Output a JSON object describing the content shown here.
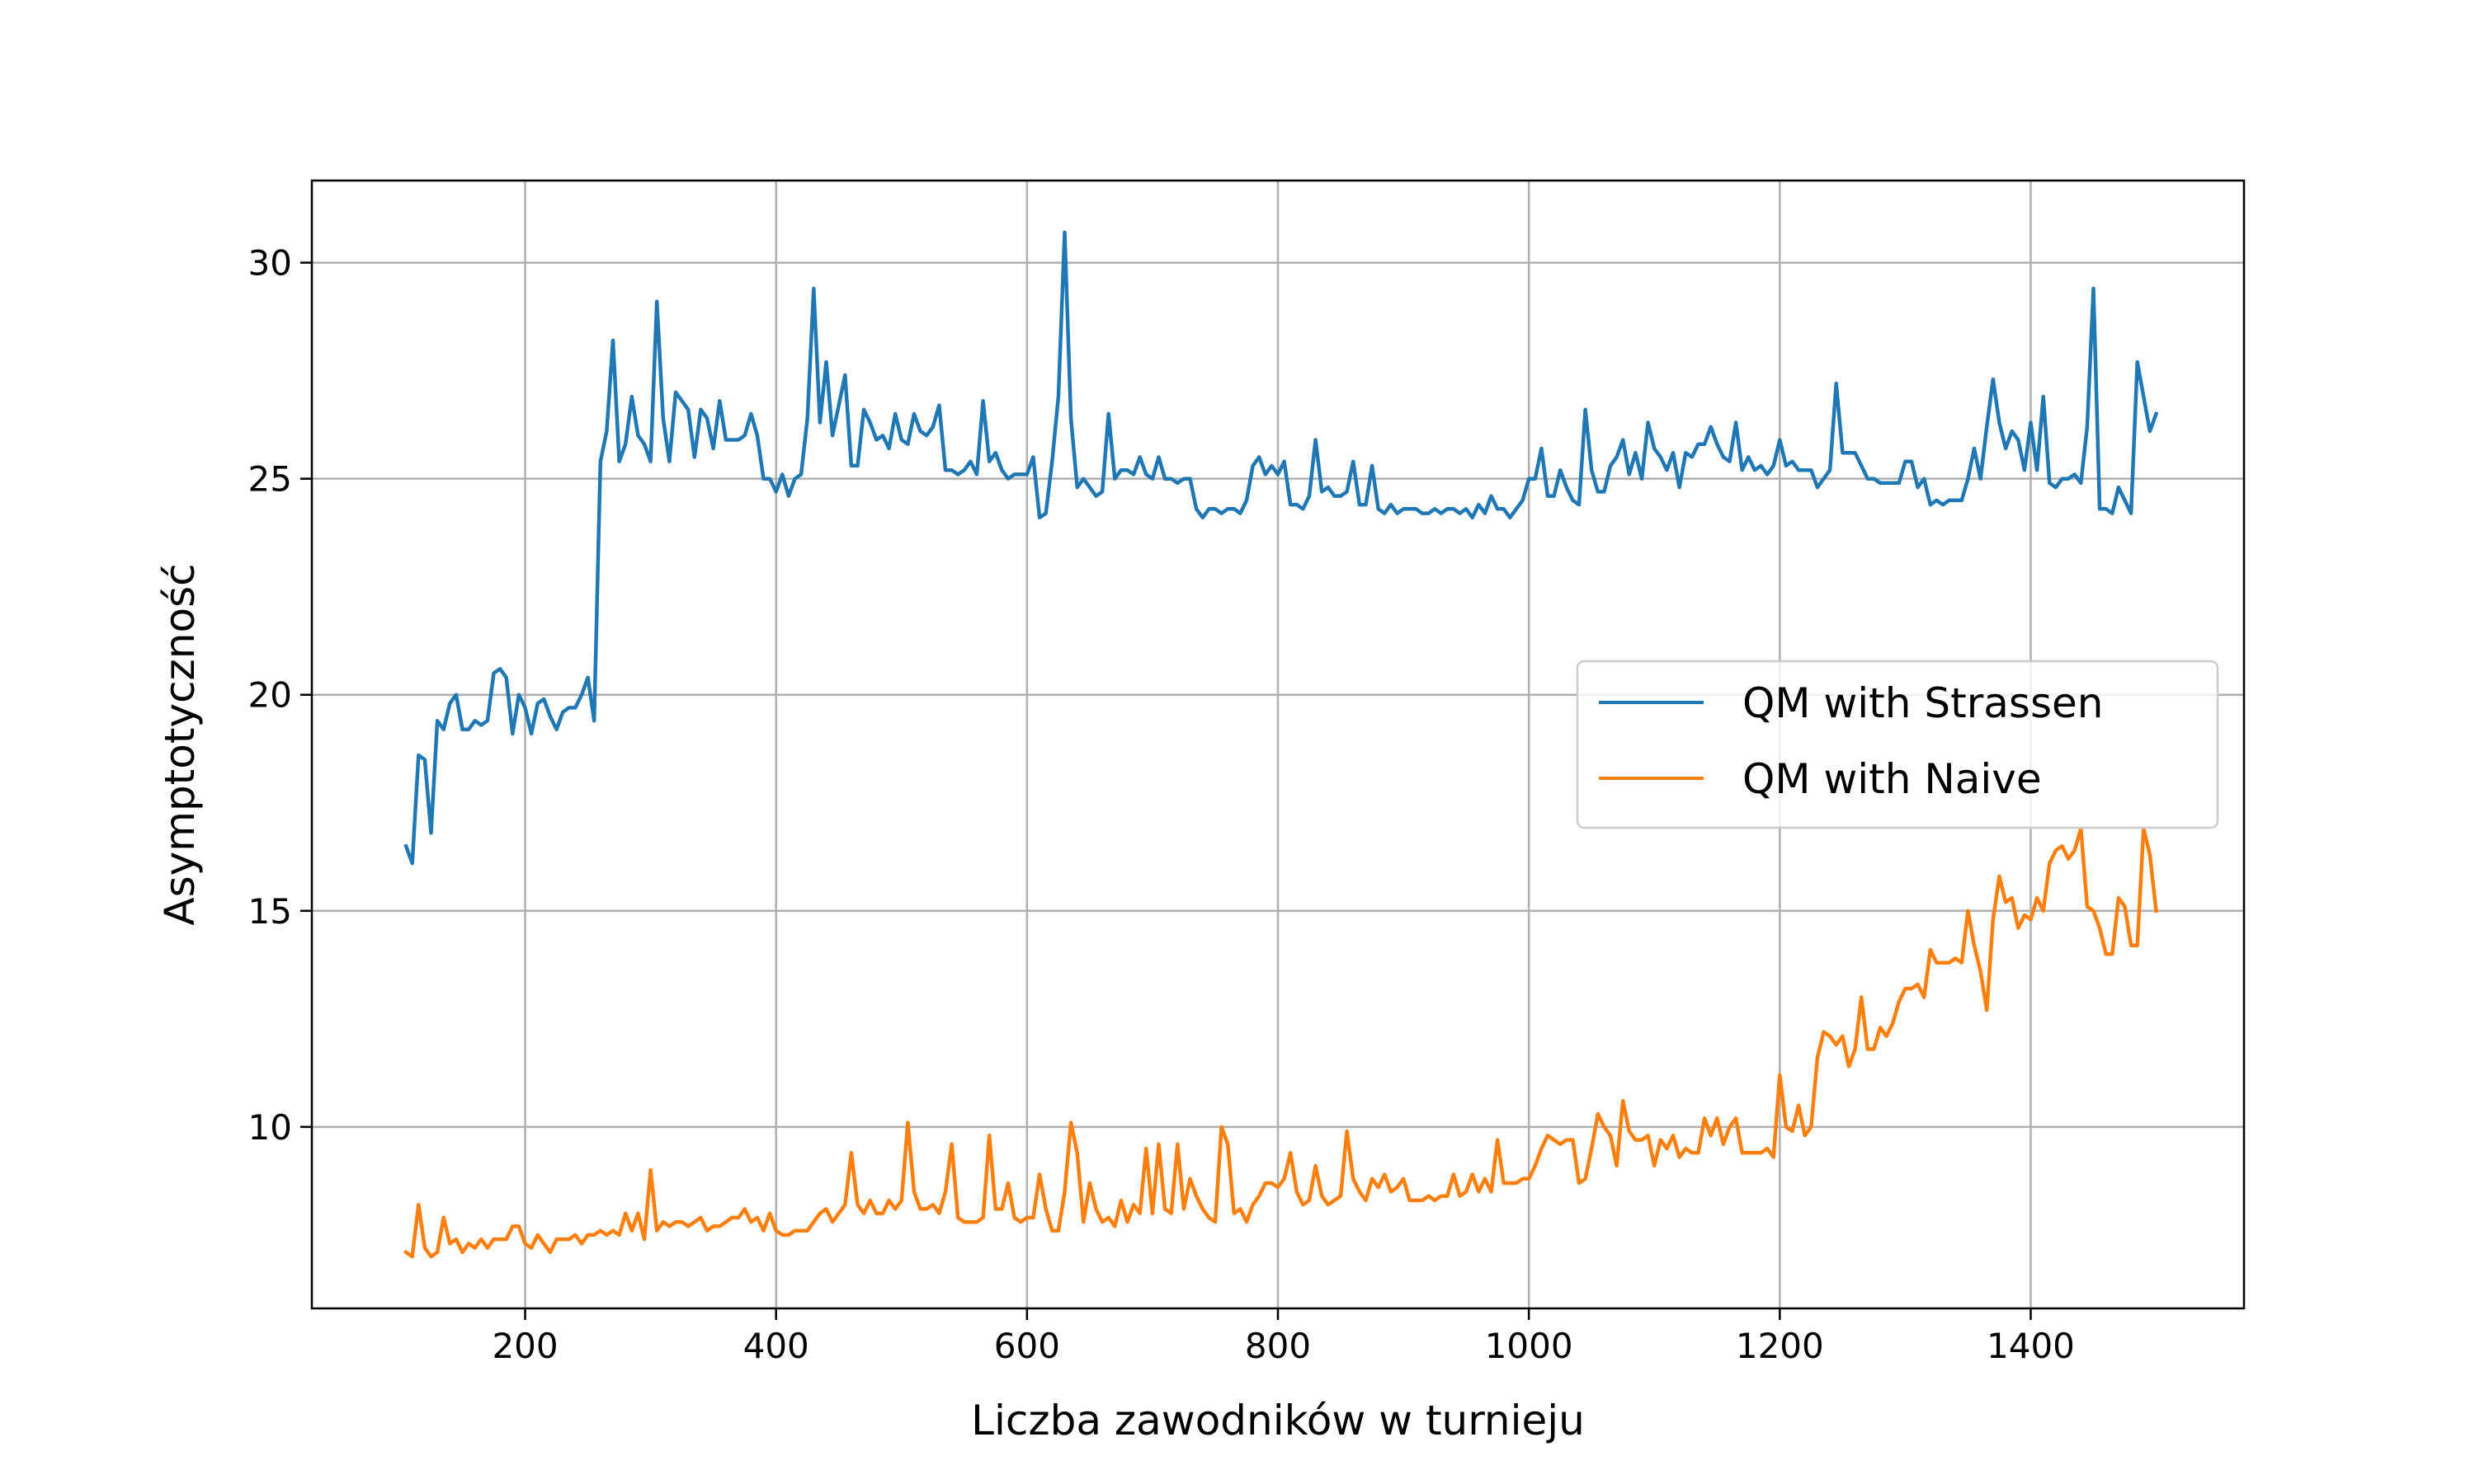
{
  "chart_data": {
    "type": "line",
    "title": "",
    "xlabel": "Liczba zawodników w turnieju",
    "ylabel": "Asymptotyczność",
    "xlim": [
      30,
      1570
    ],
    "ylim": [
      5.8,
      31.9
    ],
    "xticks": [
      200,
      400,
      600,
      800,
      1000,
      1200,
      1400
    ],
    "yticks": [
      10,
      15,
      20,
      25,
      30
    ],
    "grid": true,
    "legend_position": "center-right",
    "series": [
      {
        "name": "QM with Strassen",
        "color": "#1f77b4",
        "x": [
          105,
          110,
          115,
          120,
          125,
          130,
          135,
          140,
          145,
          150,
          155,
          160,
          165,
          170,
          175,
          180,
          185,
          190,
          195,
          200,
          205,
          210,
          215,
          220,
          225,
          230,
          235,
          240,
          245,
          250,
          255,
          260,
          265,
          270,
          275,
          280,
          285,
          290,
          295,
          300,
          305,
          310,
          315,
          320,
          325,
          330,
          335,
          340,
          345,
          350,
          355,
          360,
          365,
          370,
          375,
          380,
          385,
          390,
          395,
          400,
          405,
          410,
          415,
          420,
          425,
          430,
          435,
          440,
          445,
          450,
          455,
          460,
          465,
          470,
          475,
          480,
          485,
          490,
          495,
          500,
          505,
          510,
          515,
          520,
          525,
          530,
          535,
          540,
          545,
          550,
          555,
          560,
          565,
          570,
          575,
          580,
          585,
          590,
          595,
          600,
          605,
          610,
          615,
          620,
          625,
          630,
          635,
          640,
          645,
          650,
          655,
          660,
          665,
          670,
          675,
          680,
          685,
          690,
          695,
          700,
          705,
          710,
          715,
          720,
          725,
          730,
          735,
          740,
          745,
          750,
          755,
          760,
          765,
          770,
          775,
          780,
          785,
          790,
          795,
          800,
          805,
          810,
          815,
          820,
          825,
          830,
          835,
          840,
          845,
          850,
          855,
          860,
          865,
          870,
          875,
          880,
          885,
          890,
          895,
          900,
          905,
          910,
          915,
          920,
          925,
          930,
          935,
          940,
          945,
          950,
          955,
          960,
          965,
          970,
          975,
          980,
          985,
          990,
          995,
          1000,
          1005,
          1010,
          1015,
          1020,
          1025,
          1030,
          1035,
          1040,
          1045,
          1050,
          1055,
          1060,
          1065,
          1070,
          1075,
          1080,
          1085,
          1090,
          1095,
          1100,
          1105,
          1110,
          1115,
          1120,
          1125,
          1130,
          1135,
          1140,
          1145,
          1150,
          1155,
          1160,
          1165,
          1170,
          1175,
          1180,
          1185,
          1190,
          1195,
          1200,
          1205,
          1210,
          1215,
          1220,
          1225,
          1230,
          1235,
          1240,
          1245,
          1250,
          1255,
          1260,
          1265,
          1270,
          1275,
          1280,
          1285,
          1290,
          1295,
          1300,
          1305,
          1310,
          1315,
          1320,
          1325,
          1330,
          1335,
          1340,
          1345,
          1350,
          1355,
          1360,
          1365,
          1370,
          1375,
          1380,
          1385,
          1390,
          1395,
          1400,
          1405,
          1410,
          1415,
          1420,
          1425,
          1430,
          1435,
          1440,
          1445,
          1450,
          1455,
          1460,
          1465,
          1470,
          1475,
          1480,
          1485,
          1490,
          1495,
          1500
        ],
        "values": [
          16.5,
          16.1,
          18.6,
          18.5,
          16.8,
          19.4,
          19.2,
          19.8,
          20.0,
          19.2,
          19.2,
          19.4,
          19.3,
          19.4,
          20.5,
          20.6,
          20.4,
          19.1,
          20.0,
          19.7,
          19.1,
          19.8,
          19.9,
          19.5,
          19.2,
          19.6,
          19.7,
          19.7,
          20.0,
          20.4,
          19.4,
          25.4,
          26.1,
          28.2,
          25.4,
          25.8,
          26.9,
          26.0,
          25.8,
          25.4,
          29.1,
          26.4,
          25.4,
          27.0,
          26.8,
          26.6,
          25.5,
          26.6,
          26.4,
          25.7,
          26.8,
          25.9,
          25.9,
          25.9,
          26.0,
          26.5,
          26.0,
          25.0,
          25.0,
          24.7,
          25.1,
          24.6,
          25.0,
          25.1,
          26.4,
          29.4,
          26.3,
          27.7,
          26.0,
          26.7,
          27.4,
          25.3,
          25.3,
          26.6,
          26.3,
          25.9,
          26.0,
          25.7,
          26.5,
          25.9,
          25.8,
          26.5,
          26.1,
          26.0,
          26.2,
          26.7,
          25.2,
          25.2,
          25.1,
          25.2,
          25.4,
          25.1,
          26.8,
          25.4,
          25.6,
          25.2,
          25.0,
          25.1,
          25.1,
          25.1,
          25.5,
          24.1,
          24.2,
          25.4,
          26.9,
          30.7,
          26.4,
          24.8,
          25.0,
          24.8,
          24.6,
          24.7,
          26.5,
          25.0,
          25.2,
          25.2,
          25.1,
          25.5,
          25.1,
          25.0,
          25.5,
          25.0,
          25.0,
          24.9,
          25.0,
          25.0,
          24.3,
          24.1,
          24.3,
          24.3,
          24.2,
          24.3,
          24.3,
          24.2,
          24.5,
          25.3,
          25.5,
          25.1,
          25.3,
          25.1,
          25.4,
          24.4,
          24.4,
          24.3,
          24.6,
          25.9,
          24.7,
          24.8,
          24.6,
          24.6,
          24.7,
          25.4,
          24.4,
          24.4,
          25.3,
          24.3,
          24.2,
          24.4,
          24.2,
          24.3,
          24.3,
          24.3,
          24.2,
          24.2,
          24.3,
          24.2,
          24.3,
          24.3,
          24.2,
          24.3,
          24.1,
          24.4,
          24.2,
          24.6,
          24.3,
          24.3,
          24.1,
          24.3,
          24.5,
          25.0,
          25.0,
          25.7,
          24.6,
          24.6,
          25.2,
          24.8,
          24.5,
          24.4,
          26.6,
          25.2,
          24.7,
          24.7,
          25.3,
          25.5,
          25.9,
          25.1,
          25.6,
          25.0,
          26.3,
          25.7,
          25.5,
          25.2,
          25.6,
          24.8,
          25.6,
          25.5,
          25.8,
          25.8,
          26.2,
          25.8,
          25.5,
          25.4,
          26.3,
          25.2,
          25.5,
          25.2,
          25.3,
          25.1,
          25.3,
          25.9,
          25.3,
          25.4,
          25.2,
          25.2,
          25.2,
          24.8,
          25.0,
          25.2,
          27.2,
          25.6,
          25.6,
          25.6,
          25.3,
          25.0,
          25.0,
          24.9,
          24.9,
          24.9,
          24.9,
          25.4,
          25.4,
          24.8,
          25.0,
          24.4,
          24.5,
          24.4,
          24.5,
          24.5,
          24.5,
          25.0,
          25.7,
          25.0,
          26.2,
          27.3,
          26.3,
          25.7,
          26.1,
          25.9,
          25.2,
          26.3,
          25.2,
          26.9,
          24.9,
          24.8,
          25.0,
          25.0,
          25.1,
          24.9,
          26.2,
          29.4,
          24.3,
          24.3,
          24.2,
          24.8,
          24.5,
          24.2,
          27.7,
          26.9,
          26.1,
          26.5
        ]
      },
      {
        "name": "QM with Naive",
        "color": "#ff7f0e",
        "x": [
          105,
          110,
          115,
          120,
          125,
          130,
          135,
          140,
          145,
          150,
          155,
          160,
          165,
          170,
          175,
          180,
          185,
          190,
          195,
          200,
          205,
          210,
          215,
          220,
          225,
          230,
          235,
          240,
          245,
          250,
          255,
          260,
          265,
          270,
          275,
          280,
          285,
          290,
          295,
          300,
          305,
          310,
          315,
          320,
          325,
          330,
          335,
          340,
          345,
          350,
          355,
          360,
          365,
          370,
          375,
          380,
          385,
          390,
          395,
          400,
          405,
          410,
          415,
          420,
          425,
          430,
          435,
          440,
          445,
          450,
          455,
          460,
          465,
          470,
          475,
          480,
          485,
          490,
          495,
          500,
          505,
          510,
          515,
          520,
          525,
          530,
          535,
          540,
          545,
          550,
          555,
          560,
          565,
          570,
          575,
          580,
          585,
          590,
          595,
          600,
          605,
          610,
          615,
          620,
          625,
          630,
          635,
          640,
          645,
          650,
          655,
          660,
          665,
          670,
          675,
          680,
          685,
          690,
          695,
          700,
          705,
          710,
          715,
          720,
          725,
          730,
          735,
          740,
          745,
          750,
          755,
          760,
          765,
          770,
          775,
          780,
          785,
          790,
          795,
          800,
          805,
          810,
          815,
          820,
          825,
          830,
          835,
          840,
          845,
          850,
          855,
          860,
          865,
          870,
          875,
          880,
          885,
          890,
          895,
          900,
          905,
          910,
          915,
          920,
          925,
          930,
          935,
          940,
          945,
          950,
          955,
          960,
          965,
          970,
          975,
          980,
          985,
          990,
          995,
          1000,
          1005,
          1010,
          1015,
          1020,
          1025,
          1030,
          1035,
          1040,
          1045,
          1050,
          1055,
          1060,
          1065,
          1070,
          1075,
          1080,
          1085,
          1090,
          1095,
          1100,
          1105,
          1110,
          1115,
          1120,
          1125,
          1130,
          1135,
          1140,
          1145,
          1150,
          1155,
          1160,
          1165,
          1170,
          1175,
          1180,
          1185,
          1190,
          1195,
          1200,
          1205,
          1210,
          1215,
          1220,
          1225,
          1230,
          1235,
          1240,
          1245,
          1250,
          1255,
          1260,
          1265,
          1270,
          1275,
          1280,
          1285,
          1290,
          1295,
          1300,
          1305,
          1310,
          1315,
          1320,
          1325,
          1330,
          1335,
          1340,
          1345,
          1350,
          1355,
          1360,
          1365,
          1370,
          1375,
          1380,
          1385,
          1390,
          1395,
          1400,
          1405,
          1410,
          1415,
          1420,
          1425,
          1430,
          1435,
          1440,
          1445,
          1450,
          1455,
          1460,
          1465,
          1470,
          1475,
          1480,
          1485,
          1490,
          1495,
          1500
        ],
        "values": [
          7.1,
          7.0,
          8.2,
          7.2,
          7.0,
          7.1,
          7.9,
          7.3,
          7.4,
          7.1,
          7.3,
          7.2,
          7.4,
          7.2,
          7.4,
          7.4,
          7.4,
          7.7,
          7.7,
          7.3,
          7.2,
          7.5,
          7.3,
          7.1,
          7.4,
          7.4,
          7.4,
          7.5,
          7.3,
          7.5,
          7.5,
          7.6,
          7.5,
          7.6,
          7.5,
          8.0,
          7.6,
          8.0,
          7.4,
          9.0,
          7.6,
          7.8,
          7.7,
          7.8,
          7.8,
          7.7,
          7.8,
          7.9,
          7.6,
          7.7,
          7.7,
          7.8,
          7.9,
          7.9,
          8.1,
          7.8,
          7.9,
          7.6,
          8.0,
          7.6,
          7.5,
          7.5,
          7.6,
          7.6,
          7.6,
          7.8,
          8.0,
          8.1,
          7.8,
          8.0,
          8.2,
          9.4,
          8.2,
          8.0,
          8.3,
          8.0,
          8.0,
          8.3,
          8.1,
          8.3,
          10.1,
          8.5,
          8.1,
          8.1,
          8.2,
          8.0,
          8.5,
          9.6,
          7.9,
          7.8,
          7.8,
          7.8,
          7.9,
          9.8,
          8.1,
          8.1,
          8.7,
          7.9,
          7.8,
          7.9,
          7.9,
          8.9,
          8.1,
          7.6,
          7.6,
          8.5,
          10.1,
          9.4,
          7.8,
          8.7,
          8.1,
          7.8,
          7.9,
          7.7,
          8.3,
          7.8,
          8.2,
          8.0,
          9.5,
          8.0,
          9.6,
          8.1,
          8.0,
          9.6,
          8.1,
          8.8,
          8.4,
          8.1,
          7.9,
          7.8,
          10.0,
          9.6,
          8.0,
          8.1,
          7.8,
          8.2,
          8.4,
          8.7,
          8.7,
          8.6,
          8.8,
          9.4,
          8.5,
          8.2,
          8.3,
          9.1,
          8.4,
          8.2,
          8.3,
          8.4,
          9.9,
          8.8,
          8.5,
          8.3,
          8.8,
          8.6,
          8.9,
          8.5,
          8.6,
          8.8,
          8.3,
          8.3,
          8.3,
          8.4,
          8.3,
          8.4,
          8.4,
          8.9,
          8.4,
          8.5,
          8.9,
          8.5,
          8.8,
          8.5,
          9.7,
          8.7,
          8.7,
          8.7,
          8.8,
          8.8,
          9.1,
          9.5,
          9.8,
          9.7,
          9.6,
          9.7,
          9.7,
          8.7,
          8.8,
          9.5,
          10.3,
          10.0,
          9.8,
          9.1,
          10.6,
          9.9,
          9.7,
          9.7,
          9.8,
          9.1,
          9.7,
          9.5,
          9.8,
          9.3,
          9.5,
          9.4,
          9.4,
          10.2,
          9.8,
          10.2,
          9.6,
          10.0,
          10.2,
          9.4,
          9.4,
          9.4,
          9.4,
          9.5,
          9.3,
          11.2,
          10.0,
          9.9,
          10.5,
          9.8,
          10.0,
          11.6,
          12.2,
          12.1,
          11.9,
          12.1,
          11.4,
          11.8,
          13.0,
          11.8,
          11.8,
          12.3,
          12.1,
          12.4,
          12.9,
          13.2,
          13.2,
          13.3,
          13.0,
          14.1,
          13.8,
          13.8,
          13.8,
          13.9,
          13.8,
          15.0,
          14.2,
          13.6,
          12.7,
          14.8,
          15.8,
          15.2,
          15.3,
          14.6,
          14.9,
          14.8,
          15.3,
          15.0,
          16.1,
          16.4,
          16.5,
          16.2,
          16.4,
          16.9,
          15.1,
          15.0,
          14.6,
          14.0,
          14.0,
          15.3,
          15.1,
          14.2,
          14.2,
          16.9,
          16.3,
          15.0
        ]
      }
    ]
  }
}
